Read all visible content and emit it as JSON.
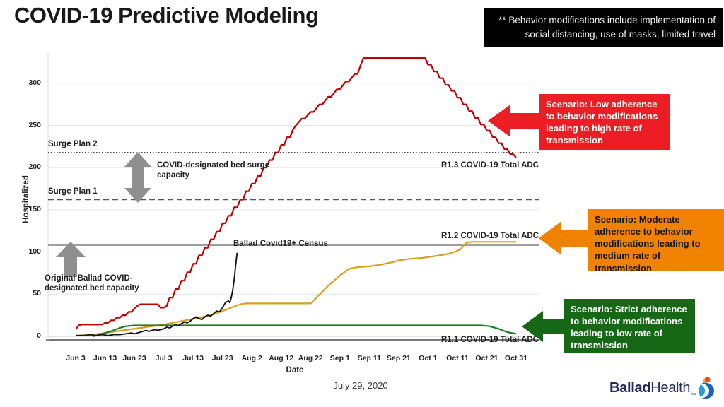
{
  "title": "COVID-19 Predictive Modeling",
  "note_box": {
    "text": "** Behavior modifications include implementation of social distancing, use of masks, limited travel"
  },
  "scenarios": [
    {
      "name": "low",
      "color": "#ec1d24",
      "text_color": "#ffffff",
      "label": "Scenario: Low adherence to behavior modifications leading to high rate of transmission"
    },
    {
      "name": "moderate",
      "color": "#f08200",
      "text_color": "#141414",
      "label": "Scenario: Moderate adherence to behavior modifications leading to medium rate of transmission"
    },
    {
      "name": "strict",
      "color": "#166816",
      "text_color": "#ffffff",
      "label": "Scenario: Strict adherence to behavior modifications leading to low rate of transmission"
    }
  ],
  "chart_data": {
    "type": "line",
    "title": "",
    "xlabel": "Date",
    "ylabel": "Hospitalized",
    "grid": "horizontal",
    "ylim": [
      0,
      340
    ],
    "y_ticks": [
      0,
      50,
      100,
      150,
      200,
      250,
      300
    ],
    "x_tick_labels": [
      "Jun 3",
      "Jun 13",
      "Jun 23",
      "Jul 3",
      "Jul 13",
      "Jul 23",
      "Aug 2",
      "Aug 12",
      "Aug 22",
      "Sep 1",
      "Sep 11",
      "Sep 21",
      "Oct 1",
      "Oct 11",
      "Oct 21",
      "Oct 31"
    ],
    "x_tick_days": [
      0,
      10,
      20,
      30,
      40,
      50,
      60,
      70,
      80,
      90,
      100,
      110,
      120,
      130,
      140,
      150
    ],
    "ref_lines": [
      {
        "label": "Surge Plan 2",
        "value": 218,
        "style": "dotted",
        "color": "#3f3f3f"
      },
      {
        "label": "Surge Plan 1",
        "value": 162,
        "style": "dashed",
        "color": "#555555"
      },
      {
        "label": "Original Ballad COVID-designated bed capacity",
        "value": 108,
        "style": "solid",
        "color": "#9e9e9e"
      }
    ],
    "annotations": {
      "surge_capacity": "COVID-designated bed surge capacity"
    },
    "series": [
      {
        "name": "R1.3 COVID-19 Total ADC",
        "color": "#c00000",
        "width": 2.2,
        "points": [
          [
            0,
            8
          ],
          [
            1,
            13
          ],
          [
            2,
            14
          ],
          [
            9,
            14
          ],
          [
            10,
            16
          ],
          [
            11,
            16
          ],
          [
            12,
            19
          ],
          [
            13,
            19
          ],
          [
            14,
            22
          ],
          [
            15,
            22
          ],
          [
            16,
            25
          ],
          [
            17,
            25
          ],
          [
            18,
            29
          ],
          [
            19,
            29
          ],
          [
            20,
            33
          ],
          [
            21,
            36
          ],
          [
            22,
            38
          ],
          [
            28,
            38
          ],
          [
            29,
            34
          ],
          [
            30,
            34
          ],
          [
            31,
            36
          ],
          [
            32,
            46
          ],
          [
            33,
            46
          ],
          [
            34,
            56
          ],
          [
            35,
            56
          ],
          [
            36,
            66
          ],
          [
            37,
            66
          ],
          [
            38,
            76
          ],
          [
            39,
            76
          ],
          [
            40,
            86
          ],
          [
            41,
            86
          ],
          [
            42,
            96
          ],
          [
            43,
            96
          ],
          [
            44,
            105
          ],
          [
            45,
            105
          ],
          [
            46,
            115
          ],
          [
            47,
            115
          ],
          [
            48,
            124
          ],
          [
            49,
            124
          ],
          [
            50,
            134
          ],
          [
            51,
            134
          ],
          [
            52,
            143
          ],
          [
            53,
            143
          ],
          [
            54,
            153
          ],
          [
            55,
            153
          ],
          [
            56,
            162
          ],
          [
            57,
            162
          ],
          [
            58,
            172
          ],
          [
            59,
            172
          ],
          [
            60,
            181
          ],
          [
            61,
            181
          ],
          [
            62,
            190
          ],
          [
            63,
            190
          ],
          [
            64,
            200
          ],
          [
            65,
            200
          ],
          [
            66,
            209
          ],
          [
            67,
            209
          ],
          [
            68,
            218
          ],
          [
            69,
            218
          ],
          [
            70,
            227
          ],
          [
            71,
            227
          ],
          [
            72,
            236
          ],
          [
            73,
            236
          ],
          [
            74,
            245
          ],
          [
            75,
            250
          ],
          [
            77,
            258
          ],
          [
            78,
            258
          ],
          [
            80,
            266
          ],
          [
            81,
            266
          ],
          [
            83,
            275
          ],
          [
            84,
            275
          ],
          [
            86,
            284
          ],
          [
            87,
            284
          ],
          [
            89,
            293
          ],
          [
            90,
            293
          ],
          [
            92,
            302
          ],
          [
            93,
            302
          ],
          [
            95,
            311
          ],
          [
            96,
            311
          ],
          [
            97,
            321
          ],
          [
            98,
            330
          ],
          [
            119,
            330
          ],
          [
            120,
            322
          ],
          [
            121,
            322
          ],
          [
            122,
            314
          ],
          [
            123,
            314
          ],
          [
            124,
            306
          ],
          [
            125,
            306
          ],
          [
            126,
            298
          ],
          [
            127,
            298
          ],
          [
            128,
            291
          ],
          [
            129,
            291
          ],
          [
            130,
            283
          ],
          [
            131,
            283
          ],
          [
            132,
            275
          ],
          [
            133,
            275
          ],
          [
            134,
            267
          ],
          [
            135,
            267
          ],
          [
            136,
            259
          ],
          [
            137,
            259
          ],
          [
            138,
            251
          ],
          [
            139,
            251
          ],
          [
            140,
            244
          ],
          [
            141,
            244
          ],
          [
            142,
            236
          ],
          [
            143,
            236
          ],
          [
            144,
            229
          ],
          [
            145,
            229
          ],
          [
            146,
            222
          ],
          [
            147,
            222
          ],
          [
            148,
            216
          ],
          [
            149,
            216
          ],
          [
            150,
            212
          ]
        ]
      },
      {
        "name": "R1.2 COVID-19 Total ADC",
        "color": "#d9a01d",
        "width": 2.2,
        "points": [
          [
            0,
            1
          ],
          [
            6,
            2
          ],
          [
            12,
            5
          ],
          [
            18,
            8
          ],
          [
            24,
            11
          ],
          [
            30,
            14
          ],
          [
            36,
            18
          ],
          [
            42,
            22
          ],
          [
            46,
            25
          ],
          [
            50,
            30
          ],
          [
            53,
            34
          ],
          [
            56,
            38
          ],
          [
            58,
            39
          ],
          [
            80,
            39
          ],
          [
            82,
            46
          ],
          [
            84,
            53
          ],
          [
            86,
            60
          ],
          [
            88,
            66
          ],
          [
            90,
            72
          ],
          [
            93,
            80
          ],
          [
            96,
            82
          ],
          [
            100,
            83
          ],
          [
            104,
            85
          ],
          [
            108,
            88
          ],
          [
            110,
            90
          ],
          [
            112,
            91
          ],
          [
            114,
            92
          ],
          [
            118,
            93
          ],
          [
            120,
            94
          ],
          [
            124,
            96
          ],
          [
            127,
            98
          ],
          [
            129,
            100
          ],
          [
            131,
            103
          ],
          [
            132,
            107
          ],
          [
            133,
            111
          ],
          [
            135,
            112
          ],
          [
            150,
            112
          ]
        ]
      },
      {
        "name": "R1.1 COVID-19 Total ADC",
        "color": "#217d21",
        "width": 2.2,
        "points": [
          [
            6,
            0
          ],
          [
            9,
            3
          ],
          [
            12,
            6
          ],
          [
            15,
            10
          ],
          [
            17,
            12
          ],
          [
            20,
            13
          ],
          [
            138,
            13
          ],
          [
            141,
            12
          ],
          [
            144,
            9
          ],
          [
            147,
            5
          ],
          [
            150,
            3
          ]
        ]
      },
      {
        "name": "Ballad Covid19+ Census",
        "color": "#151515",
        "width": 1.9,
        "points": [
          [
            0,
            1
          ],
          [
            3,
            1
          ],
          [
            5,
            2
          ],
          [
            7,
            1
          ],
          [
            9,
            2
          ],
          [
            11,
            1
          ],
          [
            13,
            2
          ],
          [
            15,
            2
          ],
          [
            17,
            3
          ],
          [
            19,
            4
          ],
          [
            20,
            3
          ],
          [
            22,
            5
          ],
          [
            24,
            7
          ],
          [
            25,
            6
          ],
          [
            27,
            8
          ],
          [
            28,
            7
          ],
          [
            30,
            9
          ],
          [
            31,
            11
          ],
          [
            32,
            10
          ],
          [
            33,
            12
          ],
          [
            34,
            14
          ],
          [
            35,
            13
          ],
          [
            36,
            15
          ],
          [
            37,
            17
          ],
          [
            38,
            16
          ],
          [
            39,
            18
          ],
          [
            40,
            21
          ],
          [
            41,
            23
          ],
          [
            42,
            21
          ],
          [
            43,
            20
          ],
          [
            44,
            23
          ],
          [
            45,
            25
          ],
          [
            46,
            24
          ],
          [
            47,
            27
          ],
          [
            48,
            30
          ],
          [
            49,
            29
          ],
          [
            50,
            34
          ],
          [
            51,
            40
          ],
          [
            52,
            42
          ],
          [
            52.5,
            40
          ],
          [
            53,
            46
          ],
          [
            53.5,
            55
          ],
          [
            54,
            68
          ],
          [
            54.5,
            85
          ],
          [
            55,
            99
          ]
        ]
      }
    ]
  },
  "footer": {
    "report_date": "July 29, 2020",
    "logo_bold": "Ballad",
    "logo_regular": "Health"
  }
}
